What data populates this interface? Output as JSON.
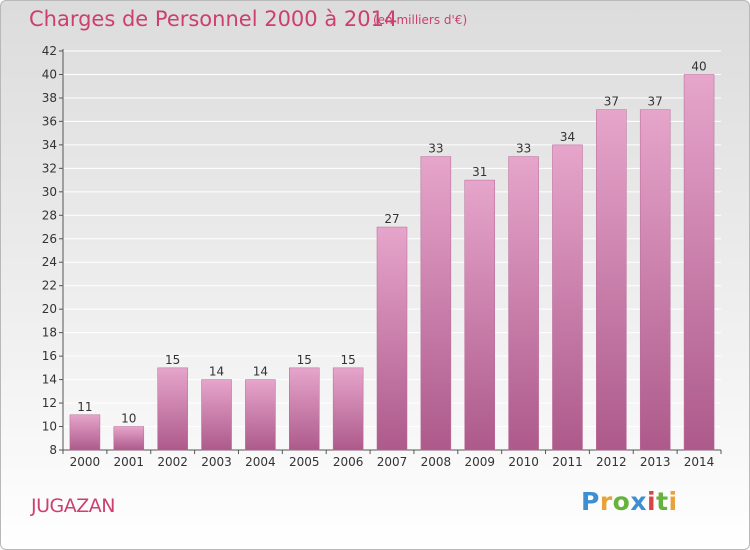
{
  "header": {
    "title": "Charges de Personnel 2000 à 2014",
    "subtitle": "(en milliers d'€)"
  },
  "footer": {
    "place": "JUGAZAN",
    "logo_text": "Proxiti"
  },
  "chart_data": {
    "type": "bar",
    "categories": [
      "2000",
      "2001",
      "2002",
      "2003",
      "2004",
      "2005",
      "2006",
      "2007",
      "2008",
      "2009",
      "2010",
      "2011",
      "2012",
      "2013",
      "2014"
    ],
    "values": [
      11,
      10,
      15,
      14,
      14,
      15,
      15,
      27,
      33,
      31,
      33,
      34,
      37,
      37,
      40
    ],
    "title": "Charges de Personnel 2000 à 2014",
    "subtitle": "(en milliers d'€)",
    "xlabel": "",
    "ylabel": "",
    "ylim": [
      8,
      42
    ],
    "yticks": [
      8,
      10,
      12,
      14,
      16,
      18,
      20,
      22,
      24,
      26,
      28,
      30,
      32,
      34,
      36,
      38,
      40,
      42
    ],
    "grid": true,
    "bar_color": "#c4679a",
    "label_color": "#cc3f70"
  }
}
